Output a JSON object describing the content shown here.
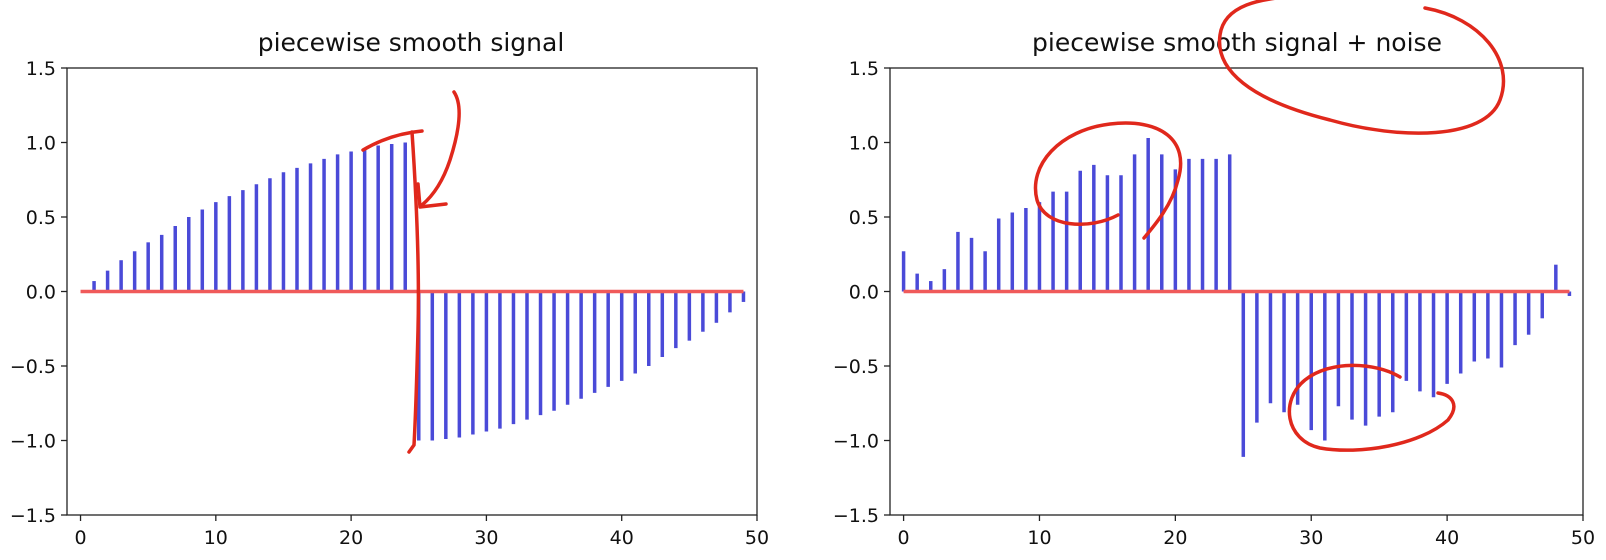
{
  "chart_data": [
    {
      "type": "stem",
      "title": "piecewise smooth signal",
      "xlim": [
        -1,
        50
      ],
      "ylim": [
        -1.5,
        1.5
      ],
      "xticks": [
        "0",
        "10",
        "20",
        "30",
        "40",
        "50"
      ],
      "xtick_values": [
        0,
        10,
        20,
        30,
        40,
        50
      ],
      "yticks": [
        "1.5",
        "1.0",
        "0.5",
        "0.0",
        "−0.5",
        "−1.0",
        "−1.5"
      ],
      "ytick_values": [
        1.5,
        1.0,
        0.5,
        0.0,
        -0.5,
        -1.0,
        -1.5
      ],
      "x": [
        0,
        1,
        2,
        3,
        4,
        5,
        6,
        7,
        8,
        9,
        10,
        11,
        12,
        13,
        14,
        15,
        16,
        17,
        18,
        19,
        20,
        21,
        22,
        23,
        24,
        25,
        26,
        27,
        28,
        29,
        30,
        31,
        32,
        33,
        34,
        35,
        36,
        37,
        38,
        39,
        40,
        41,
        42,
        43,
        44,
        45,
        46,
        47,
        48,
        49
      ],
      "values": [
        0.0,
        0.07,
        0.14,
        0.21,
        0.27,
        0.33,
        0.38,
        0.44,
        0.5,
        0.55,
        0.6,
        0.64,
        0.68,
        0.72,
        0.76,
        0.8,
        0.83,
        0.86,
        0.89,
        0.92,
        0.94,
        0.96,
        0.98,
        0.99,
        1.0,
        -1.0,
        -1.0,
        -0.99,
        -0.98,
        -0.96,
        -0.94,
        -0.92,
        -0.89,
        -0.86,
        -0.83,
        -0.8,
        -0.76,
        -0.72,
        -0.68,
        -0.64,
        -0.6,
        -0.55,
        -0.5,
        -0.44,
        -0.38,
        -0.33,
        -0.27,
        -0.21,
        -0.14,
        -0.07
      ],
      "stem_color": "#4a4ad8",
      "baseline_color": "#f05a5a",
      "grid": false
    },
    {
      "type": "stem",
      "title": "piecewise smooth signal + noise",
      "xlim": [
        -1,
        50
      ],
      "ylim": [
        -1.5,
        1.5
      ],
      "xticks": [
        "0",
        "10",
        "20",
        "30",
        "40",
        "50"
      ],
      "xtick_values": [
        0,
        10,
        20,
        30,
        40,
        50
      ],
      "yticks": [
        "1.5",
        "1.0",
        "0.5",
        "0.0",
        "−0.5",
        "−1.0",
        "−1.5"
      ],
      "ytick_values": [
        1.5,
        1.0,
        0.5,
        0.0,
        -0.5,
        -1.0,
        -1.5
      ],
      "x": [
        0,
        1,
        2,
        3,
        4,
        5,
        6,
        7,
        8,
        9,
        10,
        11,
        12,
        13,
        14,
        15,
        16,
        17,
        18,
        19,
        20,
        21,
        22,
        23,
        24,
        25,
        26,
        27,
        28,
        29,
        30,
        31,
        32,
        33,
        34,
        35,
        36,
        37,
        38,
        39,
        40,
        41,
        42,
        43,
        44,
        45,
        46,
        47,
        48,
        49
      ],
      "values": [
        0.27,
        0.12,
        0.07,
        0.15,
        0.4,
        0.36,
        0.27,
        0.49,
        0.53,
        0.56,
        0.6,
        0.67,
        0.67,
        0.81,
        0.85,
        0.78,
        0.78,
        0.92,
        1.03,
        0.92,
        0.82,
        0.89,
        0.89,
        0.89,
        0.92,
        -1.11,
        -0.88,
        -0.75,
        -0.81,
        -0.76,
        -0.93,
        -1.0,
        -0.77,
        -0.86,
        -0.9,
        -0.84,
        -0.81,
        -0.6,
        -0.67,
        -0.71,
        -0.62,
        -0.55,
        -0.47,
        -0.45,
        -0.51,
        -0.36,
        -0.29,
        -0.18,
        0.18,
        -0.03
      ],
      "stem_color": "#4a4ad8",
      "baseline_color": "#f05a5a",
      "grid": false
    }
  ],
  "annotations": {
    "ink_color": "#e0281c",
    "items": [
      "hand-drawn-arrow",
      "hand-drawn-circle"
    ]
  }
}
